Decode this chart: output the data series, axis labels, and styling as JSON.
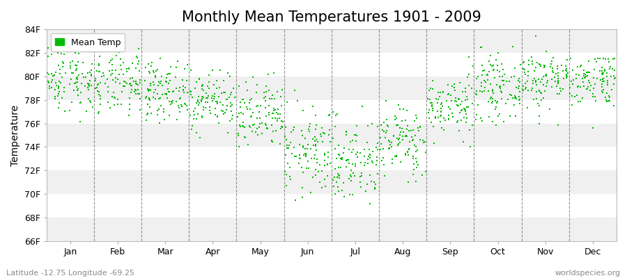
{
  "title": "Monthly Mean Temperatures 1901 - 2009",
  "ylabel": "Temperature",
  "legend_label": "Mean Temp",
  "background_color": "#ffffff",
  "plot_bg_color": "#ffffff",
  "band_colors": [
    "#f0f0f0",
    "#ffffff"
  ],
  "point_color": "#00bb00",
  "point_marker": "s",
  "point_size": 3,
  "ylim": [
    66,
    84
  ],
  "yticks": [
    66,
    68,
    70,
    72,
    74,
    76,
    78,
    80,
    82,
    84
  ],
  "ytick_labels": [
    "66F",
    "68F",
    "70F",
    "72F",
    "74F",
    "76F",
    "78F",
    "80F",
    "82F",
    "84F"
  ],
  "months": [
    "Jan",
    "Feb",
    "Mar",
    "Apr",
    "May",
    "Jun",
    "Jul",
    "Aug",
    "Sep",
    "Oct",
    "Nov",
    "Dec"
  ],
  "footnote_left": "Latitude -12.75 Longitude -69.25",
  "footnote_right": "worldspecies.org",
  "title_fontsize": 15,
  "axis_fontsize": 10,
  "tick_fontsize": 9,
  "footnote_fontsize": 8,
  "num_years": 109,
  "seed": 42,
  "monthly_means": [
    79.8,
    79.3,
    78.8,
    78.0,
    76.5,
    73.5,
    72.8,
    74.5,
    77.5,
    79.0,
    79.8,
    79.8
  ],
  "monthly_stds": [
    1.4,
    1.3,
    1.2,
    1.2,
    1.5,
    1.8,
    1.8,
    1.5,
    1.3,
    1.3,
    1.3,
    1.2
  ],
  "monthly_min": [
    75.5,
    75.5,
    75.5,
    74.5,
    71.5,
    68.0,
    67.0,
    69.5,
    74.0,
    75.5,
    75.5,
    74.5
  ],
  "monthly_max": [
    83.5,
    83.0,
    81.5,
    80.5,
    80.5,
    80.5,
    80.5,
    81.5,
    83.5,
    83.5,
    83.5,
    81.5
  ],
  "xlim_start": 0,
  "xlim_end": 12,
  "month_dividers": [
    1,
    2,
    3,
    4,
    5,
    6,
    7,
    8,
    9,
    10,
    11
  ]
}
